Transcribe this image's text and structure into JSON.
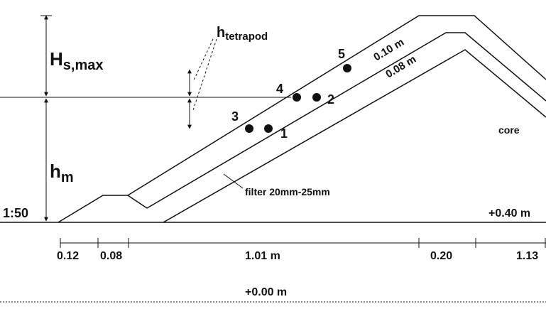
{
  "wave": {
    "height_label": "H",
    "height_sub": "s,max",
    "depth_label": "h",
    "depth_sub": "m",
    "slope": "1:50"
  },
  "tetrapod": {
    "label": "h",
    "sub": "tetrapod"
  },
  "gauges": [
    "1",
    "2",
    "3",
    "4",
    "5"
  ],
  "layers": {
    "outer": "0.10 m",
    "inner": "0.08 m",
    "filter": "filter 20mm-25mm",
    "core": "core"
  },
  "levels": {
    "top": "+0.40 m",
    "bottom": "+0.00 m"
  },
  "widths": [
    "0.12",
    "0.08",
    "1.01 m",
    "0.20",
    "1.13"
  ]
}
